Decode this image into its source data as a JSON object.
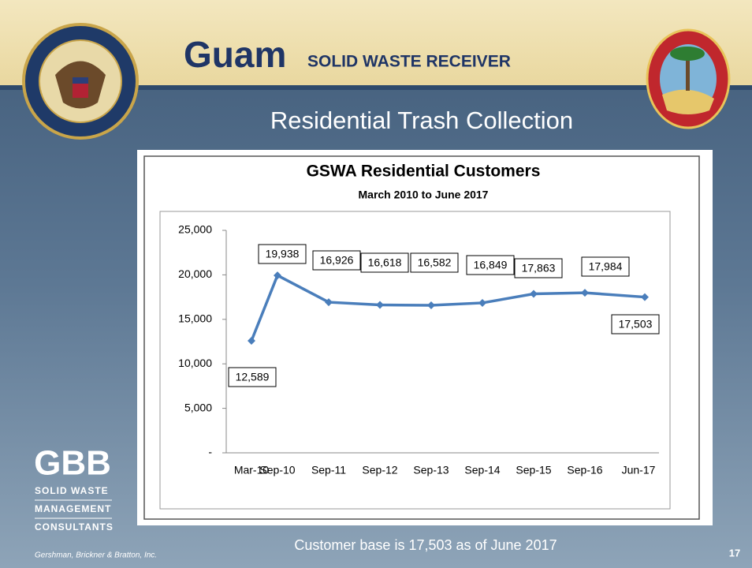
{
  "slide": {
    "brand": "Guam",
    "brand_sub": "SOLID WASTE RECEIVER",
    "heading": "Residential Trash Collection",
    "footer_note": "Customer base is 17,503 as of June 2017",
    "page_number": "17",
    "company": "Gershman, Brickner & Bratton, Inc.",
    "logo": [
      "GBB",
      "SOLID WASTE",
      "MANAGEMENT",
      "CONSULTANTS"
    ]
  },
  "chart_data": {
    "type": "line",
    "title": "GSWA Residential Customers",
    "subtitle": "March 2010 to June 2017",
    "categories": [
      "Mar-10",
      "Sep-10",
      "Sep-11",
      "Sep-12",
      "Sep-13",
      "Sep-14",
      "Sep-15",
      "Sep-16",
      "Jun-17"
    ],
    "values": [
      12589,
      19938,
      16926,
      16618,
      16582,
      16849,
      17863,
      17984,
      17503
    ],
    "value_labels": [
      "12,589",
      "19,938",
      "16,926",
      "16,618",
      "16,582",
      "16,849",
      "17,863",
      "17,984",
      "17,503"
    ],
    "color": "#4a7ebb",
    "ylim": [
      0,
      25000
    ],
    "yticks": [
      {
        "value": 0,
        "label": "-"
      },
      {
        "value": 5000,
        "label": "5,000"
      },
      {
        "value": 10000,
        "label": "10,000"
      },
      {
        "value": 15000,
        "label": "15,000"
      },
      {
        "value": 20000,
        "label": "20,000"
      },
      {
        "value": 25000,
        "label": "25,000"
      }
    ],
    "grid": false
  }
}
